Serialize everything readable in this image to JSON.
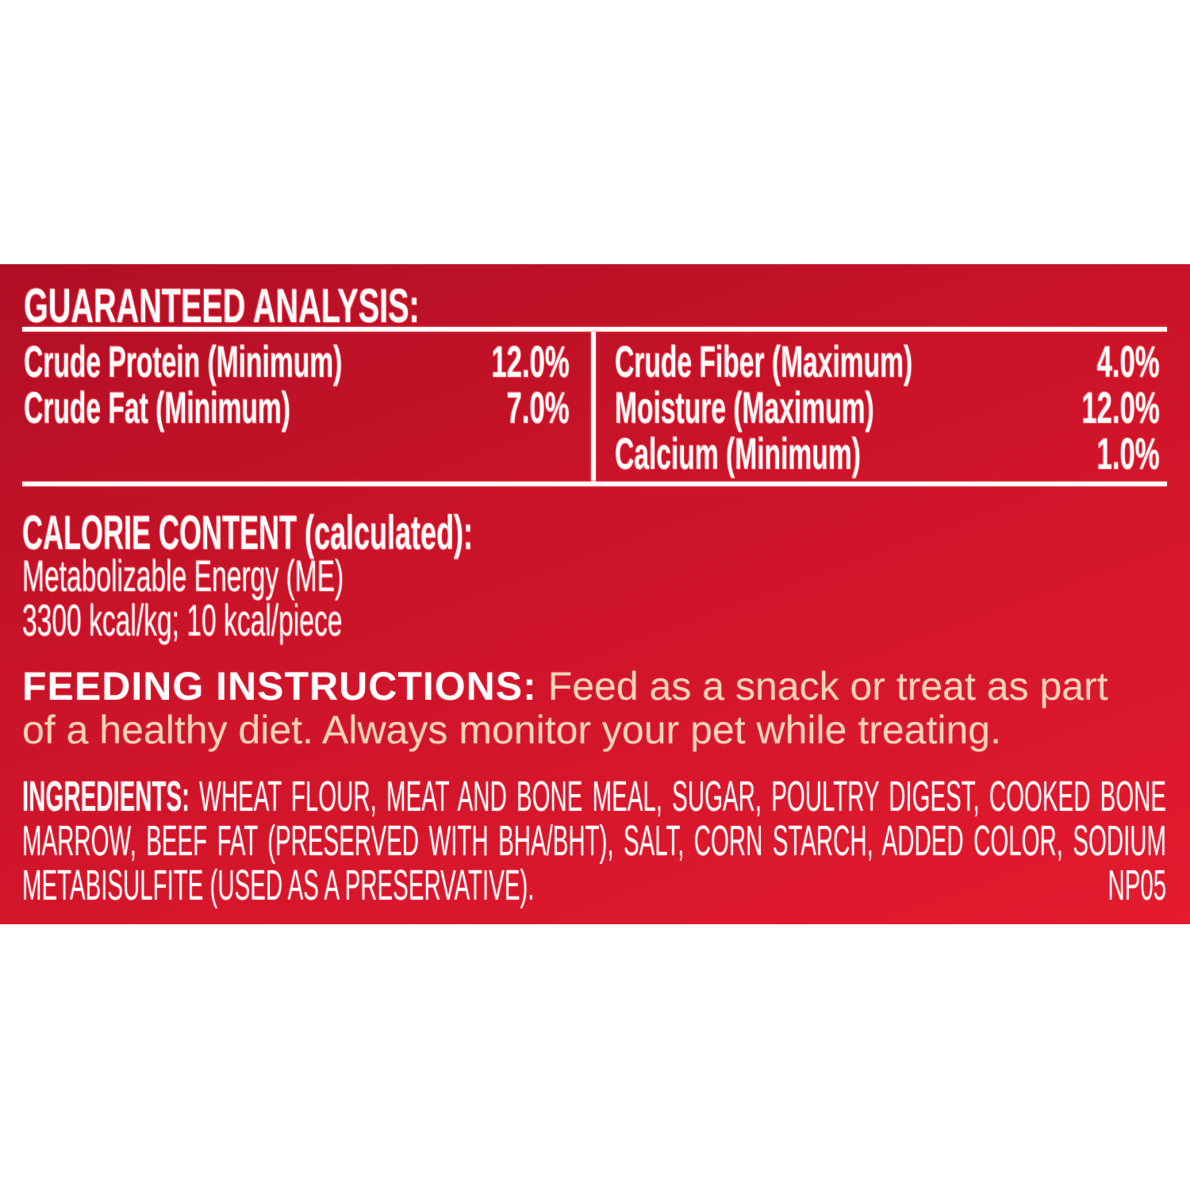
{
  "guaranteed_analysis": {
    "title": "GUARANTEED ANALYSIS:",
    "left": [
      {
        "label": "Crude Protein (Minimum)",
        "value": "12.0%"
      },
      {
        "label": "Crude Fat (Minimum)",
        "value": "7.0%"
      }
    ],
    "right": [
      {
        "label": "Crude Fiber (Maximum)",
        "value": "4.0%"
      },
      {
        "label": "Moisture (Maximum)",
        "value": "12.0%"
      },
      {
        "label": "Calcium (Minimum)",
        "value": "1.0%"
      }
    ]
  },
  "calorie": {
    "title": "CALORIE CONTENT (calculated):",
    "line1": "Metabolizable Energy (ME)",
    "line2": "3300 kcal/kg; 10 kcal/piece"
  },
  "feeding": {
    "label": "FEEDING INSTRUCTIONS:",
    "line1": "Feed as a snack or treat as part",
    "line2": "of a healthy diet. Always monitor your pet while treating."
  },
  "ingredients": {
    "label": "INGREDIENTS:",
    "line1": "WHEAT FLOUR, MEAT AND BONE MEAL, SUGAR, POULTRY DIGEST, COOKED BONE",
    "line2": "MARROW, BEEF FAT (PRESERVED WITH BHA/BHT), SALT, CORN STARCH, ADDED COLOR, SODIUM",
    "line3": "METABISULFITE (USED AS A PRESERVATIVE).",
    "code": "NP05"
  },
  "colors": {
    "panel_dark": "#b00f25",
    "panel_light": "#e41a2e",
    "feeding_text": "#f4d5bb"
  }
}
